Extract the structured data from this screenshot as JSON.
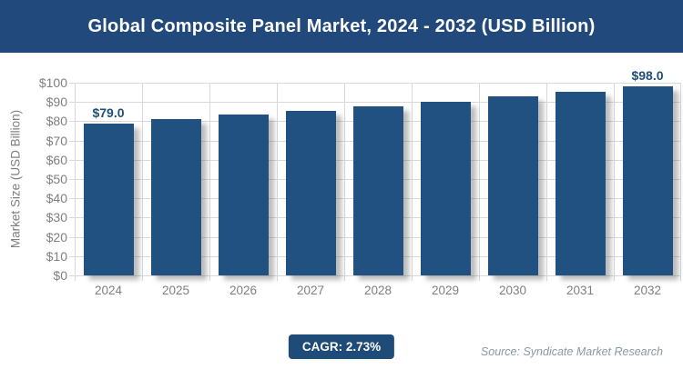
{
  "header": {
    "title": "Global Composite Panel Market, 2024 - 2032 (USD Billion)"
  },
  "chart_data": {
    "type": "bar",
    "title": "Global Composite Panel Market, 2024 - 2032 (USD Billion)",
    "categories": [
      "2024",
      "2025",
      "2026",
      "2027",
      "2028",
      "2029",
      "2030",
      "2031",
      "2032"
    ],
    "values": [
      79.0,
      81.2,
      83.4,
      85.6,
      87.9,
      90.3,
      92.8,
      95.3,
      98.0
    ],
    "point_labels": {
      "0": "$79.0",
      "8": "$98.0"
    },
    "xlabel": "",
    "ylabel": "Market Size (USD Billion)",
    "ylim": [
      0,
      100
    ],
    "ytick_step": 10,
    "ytick_prefix": "$",
    "grid": true,
    "legend": false,
    "bar_color": "#205180"
  },
  "footer": {
    "cagr_label": "CAGR: 2.73%",
    "source": "Source: Syndicate Market Research"
  },
  "colors": {
    "banner": "#21497C",
    "bar": "#205180",
    "badge": "#1E4B78",
    "grid": "#D9D9D9",
    "axis_text": "#7F7F7F",
    "value_label": "#1F4E79",
    "source_text": "#8A99A3"
  }
}
